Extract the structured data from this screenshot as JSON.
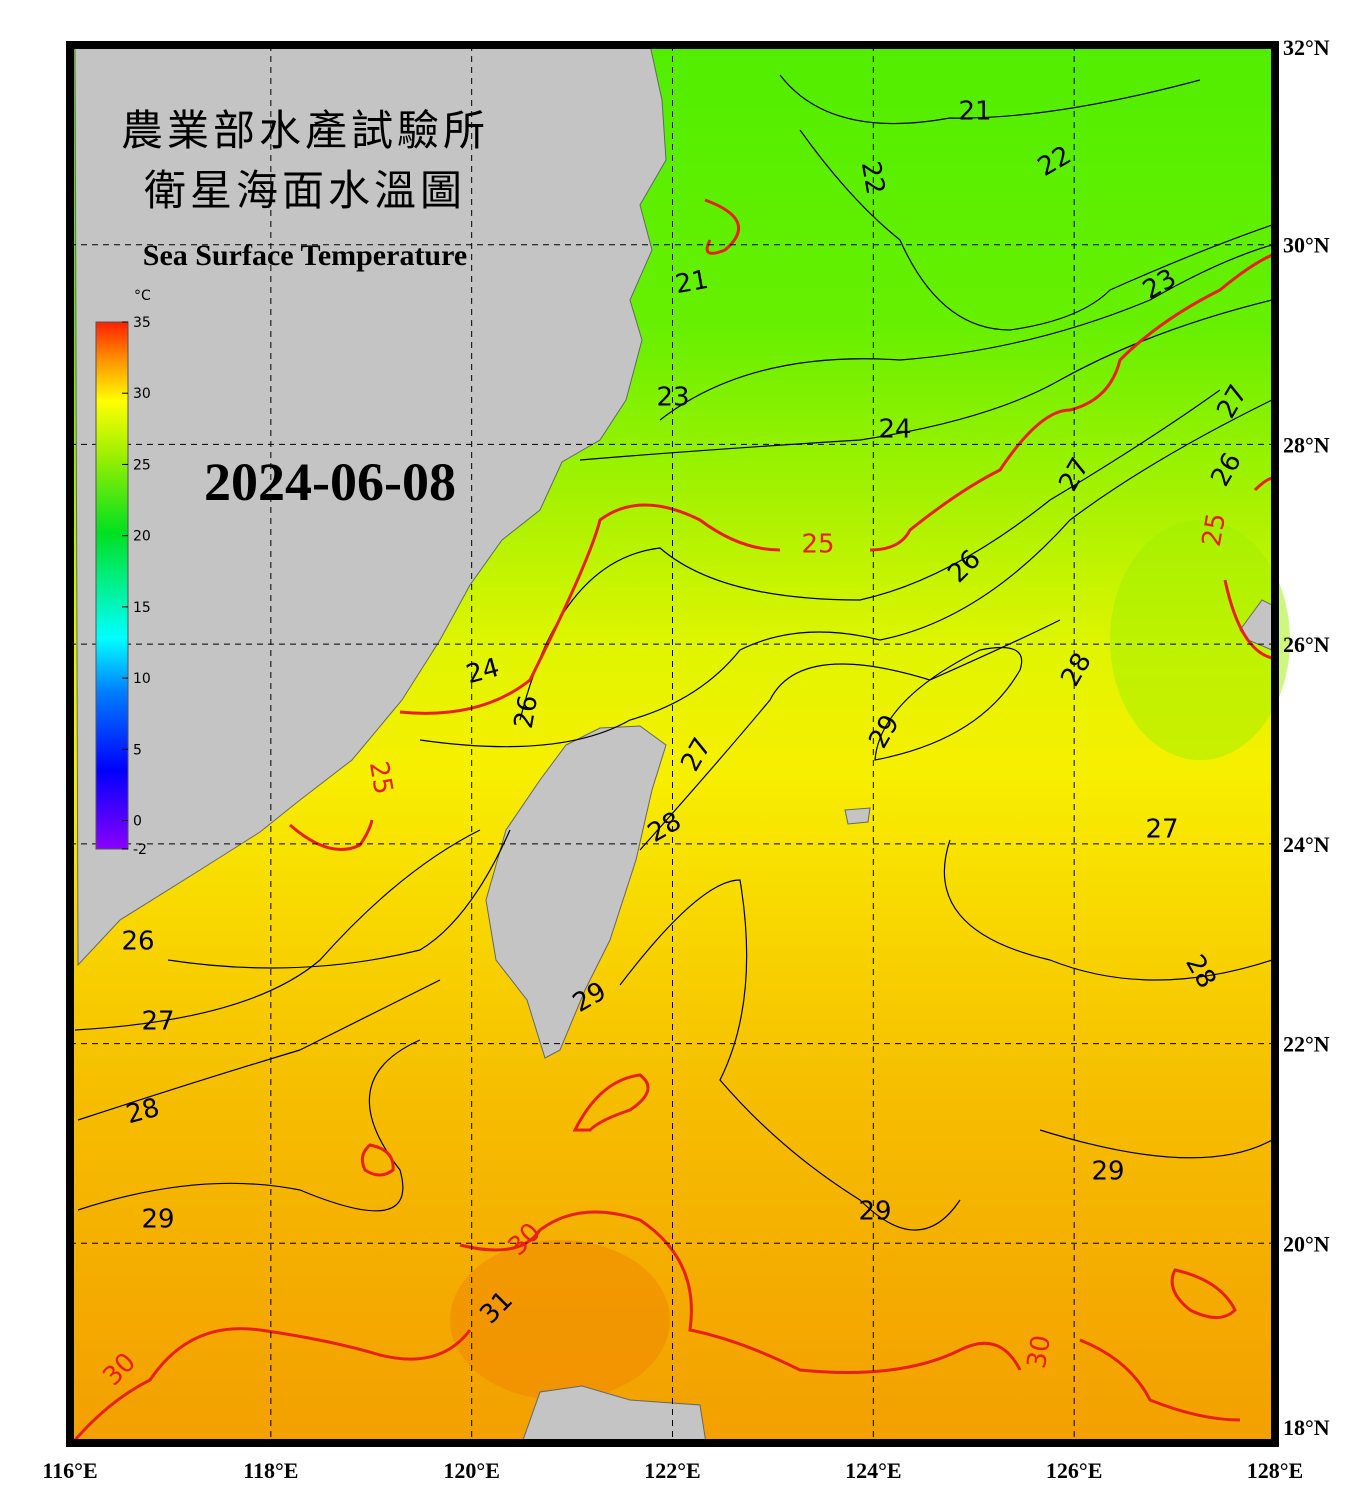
{
  "header": {
    "title_zh_line1": "農業部水產試驗所",
    "title_zh_line2": "衛星海面水溫圖",
    "title_en": "Sea Surface Temperature",
    "date": "2024-06-08"
  },
  "colorbar": {
    "unit": "°C",
    "range": [
      -2,
      35
    ],
    "ticks": [
      35,
      30,
      25,
      20,
      15,
      10,
      5,
      0,
      -2
    ]
  },
  "map": {
    "lon_range": [
      116,
      128
    ],
    "lat_range": [
      18,
      32
    ],
    "lon_ticks": [
      {
        "value": 116,
        "label": "116°E"
      },
      {
        "value": 118,
        "label": "118°E"
      },
      {
        "value": 120,
        "label": "120°E"
      },
      {
        "value": 122,
        "label": "122°E"
      },
      {
        "value": 124,
        "label": "124°E"
      },
      {
        "value": 126,
        "label": "126°E"
      },
      {
        "value": 128,
        "label": "128°E"
      }
    ],
    "lat_ticks": [
      {
        "value": 32,
        "label": "32°N"
      },
      {
        "value": 30,
        "label": "30°N"
      },
      {
        "value": 28,
        "label": "28°N"
      },
      {
        "value": 26,
        "label": "26°N"
      },
      {
        "value": 24,
        "label": "24°N"
      },
      {
        "value": 22,
        "label": "22°N"
      },
      {
        "value": 20,
        "label": "20°N"
      },
      {
        "value": 18,
        "label": "18°N"
      }
    ]
  },
  "contour_labels": [
    21,
    22,
    22,
    21,
    23,
    23,
    24,
    27,
    26,
    27,
    25,
    25,
    26,
    24,
    28,
    26,
    29,
    27,
    25,
    28,
    27,
    26,
    28,
    29,
    27,
    28,
    29,
    29,
    29,
    30,
    31,
    30,
    30
  ]
}
